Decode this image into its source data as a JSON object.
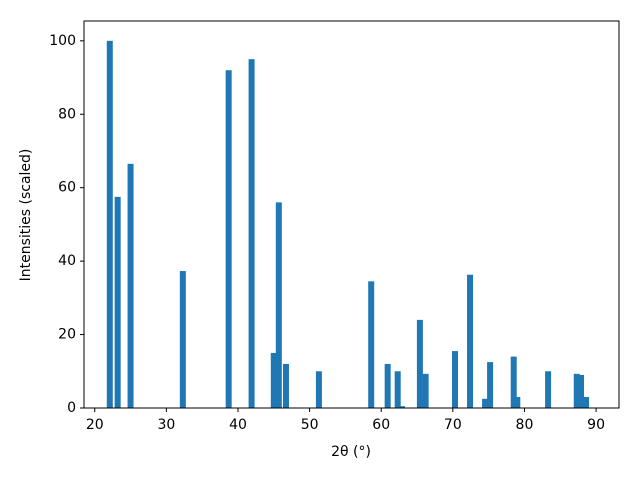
{
  "chart_data": {
    "type": "bar",
    "xlabel": "2θ (°)",
    "ylabel": "Intensities (scaled)",
    "x": [
      22.1,
      23.2,
      25.0,
      32.3,
      38.7,
      41.9,
      45.0,
      45.7,
      46.7,
      51.3,
      58.6,
      60.9,
      62.3,
      62.9,
      65.4,
      66.2,
      70.3,
      72.4,
      74.5,
      75.2,
      78.5,
      79.0,
      83.3,
      87.3,
      87.9,
      88.6
    ],
    "values": [
      100,
      57.5,
      66.5,
      37.3,
      92,
      95,
      15,
      56,
      12,
      10,
      34.5,
      12,
      10,
      0.5,
      24,
      9.3,
      15.5,
      36.3,
      2.5,
      12.5,
      14,
      3,
      10,
      9.3,
      9,
      3
    ],
    "color": "#1f77b4",
    "xlim": [
      18.5,
      93.2
    ],
    "ylim": [
      0,
      105.4
    ],
    "xticks": [
      20,
      30,
      40,
      50,
      60,
      70,
      80,
      90
    ],
    "yticks": [
      0,
      20,
      40,
      60,
      80,
      100
    ]
  }
}
